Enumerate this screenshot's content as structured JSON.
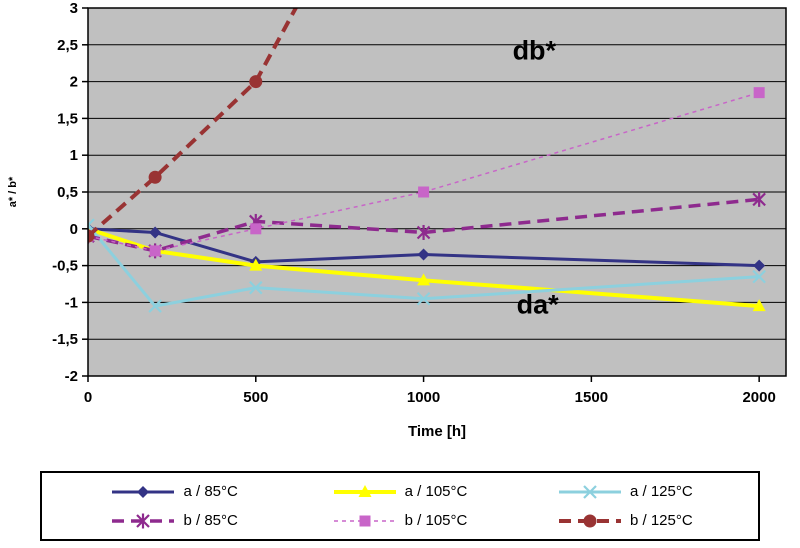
{
  "chart_data": {
    "type": "line",
    "x": [
      0,
      200,
      500,
      1000,
      2000
    ],
    "xlabel": "Time [h]",
    "ylabel": "a* / b*",
    "xlim": [
      0,
      2080
    ],
    "ylim": [
      -2,
      3
    ],
    "xticks": [
      0,
      500,
      1000,
      1500,
      2000
    ],
    "yticks": [
      -2,
      -1.5,
      -1,
      -0.5,
      0,
      0.5,
      1,
      1.5,
      2,
      2.5,
      3
    ],
    "ytick_labels": [
      "-2",
      "-1,5",
      "-1",
      "-0,5",
      "0",
      "0,5",
      "1",
      "1,5",
      "2",
      "2,5",
      "3"
    ],
    "grid": true,
    "plot_bg": "#c0c0c0",
    "legend_position": "bottom",
    "series": [
      {
        "name": "a / 85°C",
        "color": "#333385",
        "dash": "solid",
        "width": 3,
        "marker": "diamond",
        "values": [
          0,
          -0.05,
          -0.45,
          -0.35,
          -0.5
        ]
      },
      {
        "name": "a / 105°C",
        "color": "#ffff00",
        "dash": "solid",
        "width": 4,
        "marker": "triangle",
        "values": [
          0,
          -0.3,
          -0.5,
          -0.7,
          -1.05
        ]
      },
      {
        "name": "a / 125°C",
        "color": "#8cd0de",
        "dash": "solid",
        "width": 3,
        "marker": "x",
        "values": [
          0.05,
          -1.05,
          -0.8,
          -0.95,
          -0.65
        ]
      },
      {
        "name": "b / 85°C",
        "color": "#8e2a8e",
        "dash": "dashed",
        "width": 3.5,
        "marker": "asterisk",
        "values": [
          -0.1,
          -0.3,
          0.1,
          -0.05,
          0.4
        ]
      },
      {
        "name": "b / 105°C",
        "color": "#c865c8",
        "dash": "dashed-thin",
        "width": 1.5,
        "marker": "square",
        "values": [
          -0.1,
          -0.3,
          0,
          0.5,
          1.85
        ]
      },
      {
        "name": "b / 125°C",
        "color": "#993333",
        "dash": "dashed",
        "width": 4,
        "marker": "circle",
        "values": [
          -0.1,
          0.7,
          2.0,
          null,
          null
        ],
        "extend_to": [
          655,
          3.3
        ]
      }
    ],
    "annotations": [
      {
        "text": "db*",
        "x": 1330,
        "y": 2.3
      },
      {
        "text": "da*",
        "x": 1340,
        "y": -1.15
      }
    ]
  }
}
